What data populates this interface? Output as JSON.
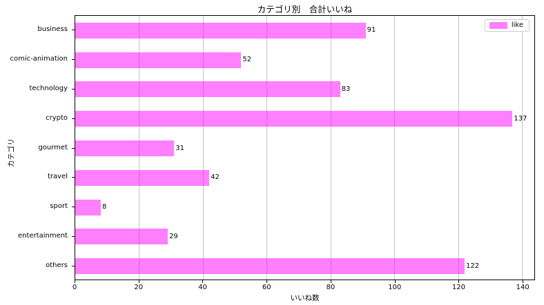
{
  "colors": {
    "bar": "#FF00FF",
    "bar_alpha": 0.5,
    "bar_rendered": "#FF80FF",
    "grid": "#c2c2c2",
    "spine": "#000000",
    "text": "#000000",
    "legend_border": "#cccccc"
  },
  "chart_data": {
    "type": "bar",
    "orientation": "horizontal",
    "title": "カテゴリ別　合計いいね",
    "xlabel": "いいね数",
    "ylabel": "カテゴリ",
    "categories": [
      "business",
      "comic-animation",
      "technology",
      "crypto",
      "gourmet",
      "travel",
      "sport",
      "entertainment",
      "others"
    ],
    "values": [
      91,
      52,
      83,
      137,
      31,
      42,
      8,
      29,
      122
    ],
    "bar_value_labels": [
      "91",
      "52",
      "83",
      "137",
      "31",
      "42",
      "8",
      "29",
      "122"
    ],
    "xticks": [
      0,
      20,
      40,
      60,
      80,
      100,
      120,
      140
    ],
    "xlim": [
      0,
      143.85
    ],
    "grid": "vertical-gridlines-on",
    "legend": {
      "label": "like",
      "position": "upper right"
    }
  }
}
